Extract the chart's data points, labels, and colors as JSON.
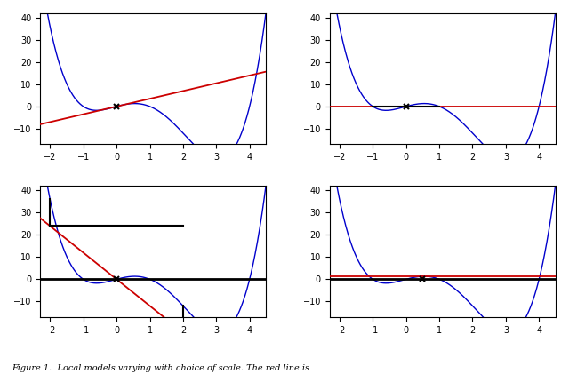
{
  "curve_color": "#0000cc",
  "line_color": "#cc0000",
  "marker_color": "black",
  "vline_color": "black",
  "hline_color": "black",
  "subplots": [
    {
      "query_point_x": 0.0,
      "red_line_slope": 3.5,
      "vlines": [],
      "hline": null,
      "xlim": [
        -2.3,
        4.5
      ],
      "ylim": [
        -17,
        42
      ],
      "vline_bounded": false
    },
    {
      "query_point_x": 0.0,
      "red_line_slope": 0.0,
      "vlines": [
        -1.0,
        1.0
      ],
      "hline": null,
      "xlim": [
        -2.3,
        4.5
      ],
      "ylim": [
        -17,
        42
      ],
      "vline_bounded": true
    },
    {
      "query_point_x": 0.0,
      "red_line_slope": -12.0,
      "vlines": [
        -2.0,
        2.0
      ],
      "hline": 0,
      "xlim": [
        -2.3,
        4.5
      ],
      "ylim": [
        -17,
        42
      ],
      "vline_bounded": true
    },
    {
      "query_point_x": 0.5,
      "red_line_slope": 0.0,
      "vlines": [],
      "hline": 0,
      "xlim": [
        -2.3,
        4.5
      ],
      "ylim": [
        -17,
        42
      ],
      "vline_bounded": false
    }
  ],
  "caption": "Figure 1.  Local models varying with choice of scale. The red line is",
  "figure_bg": "#ffffff",
  "tick_fontsize": 7
}
